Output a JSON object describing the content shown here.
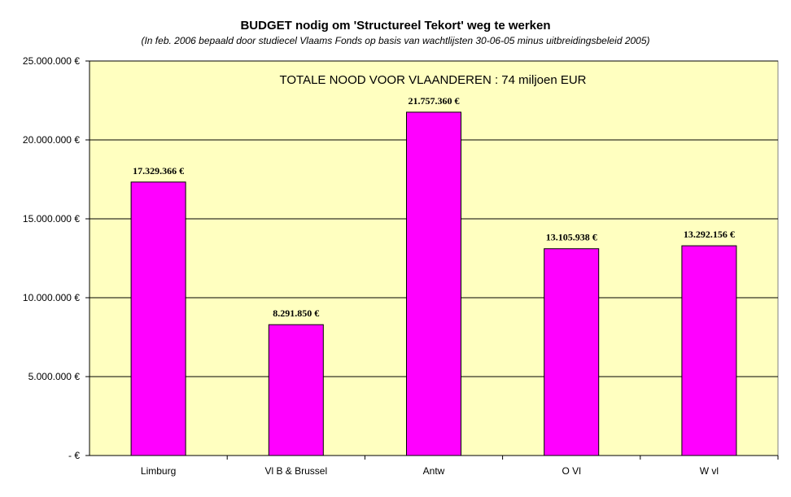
{
  "chart_data": {
    "type": "bar",
    "title": "BUDGET nodig om 'Structureel Tekort' weg te werken",
    "subtitle": "(In feb. 2006 bepaald door studiecel Vlaams Fonds op basis van wachtlijsten 30-06-05 minus uitbreidingsbeleid 2005)",
    "annotation": "TOTALE NOOD VOOR VLAANDEREN : 74 miljoen EUR",
    "categories": [
      "Limburg",
      "Vl B & Brussel",
      "Antw",
      "O Vl",
      "W vl"
    ],
    "values": [
      17329366,
      8291850,
      21757360,
      13105938,
      13292156
    ],
    "data_labels": [
      "17.329.366 €",
      "8.291.850 €",
      "21.757.360 €",
      "13.105.938 €",
      "13.292.156 €"
    ],
    "ylim": [
      0,
      25000000
    ],
    "yticks": [
      0,
      5000000,
      10000000,
      15000000,
      20000000,
      25000000
    ],
    "ytick_labels": [
      "- €",
      "5.000.000 €",
      "10.000.000 €",
      "15.000.000 €",
      "20.000.000 €",
      "25.000.000 €"
    ],
    "xlabel": "",
    "ylabel": "",
    "grid": true,
    "legend": "none",
    "colors": {
      "bar_fill": "#FF00FF",
      "bar_stroke": "#000000",
      "plot_background": "#FFFFC0",
      "gridline": "#000000"
    }
  }
}
